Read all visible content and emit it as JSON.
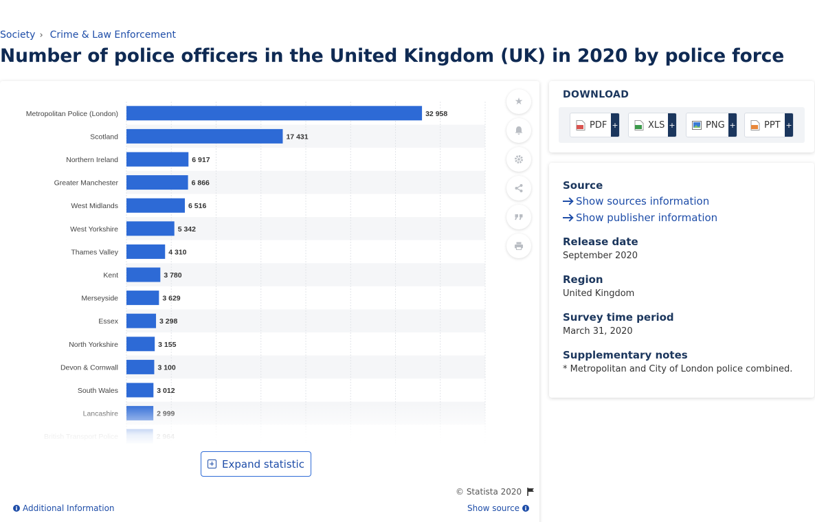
{
  "breadcrumb": {
    "item1": "Society",
    "item2": "Crime & Law Enforcement"
  },
  "page_title": "Number of police officers in the United Kingdom (UK) in 2020 by police force",
  "chart_data": {
    "type": "bar",
    "orientation": "horizontal",
    "categories": [
      "Metropolitan Police (London)",
      "Scotland",
      "Northern Ireland",
      "Greater Manchester",
      "West Midlands",
      "West Yorkshire",
      "Thames Valley",
      "Kent",
      "Merseyside",
      "Essex",
      "North Yorkshire",
      "Devon & Cornwall",
      "South Wales",
      "Lancashire",
      "British Transport Police"
    ],
    "values": [
      32958,
      17431,
      6917,
      6866,
      6516,
      5342,
      4310,
      3780,
      3629,
      3298,
      3155,
      3100,
      3012,
      2999,
      2964
    ],
    "value_labels": [
      "32 958",
      "17 431",
      "6 917",
      "6 866",
      "6 516",
      "5 342",
      "4 310",
      "3 780",
      "3 629",
      "3 298",
      "3 155",
      "3 100",
      "3 012",
      "2 999",
      "2 964"
    ],
    "xlim": [
      0,
      40000
    ],
    "bar_color": "#2d6ad6",
    "grid": true,
    "gridline_step": 5000
  },
  "tools": [
    "star-icon",
    "bell-icon",
    "gear-icon",
    "share-icon",
    "quote-icon",
    "print-icon"
  ],
  "expand_label": "Expand statistic",
  "copyright": "© Statista 2020",
  "additional_info": "Additional Information",
  "show_source": "Show source",
  "download": {
    "title": "DOWNLOAD",
    "buttons": [
      {
        "label": "PDF",
        "icon": "pdf-file-icon",
        "color": "#d9534f"
      },
      {
        "label": "XLS",
        "icon": "xls-file-icon",
        "color": "#3c9a4b"
      },
      {
        "label": "PNG",
        "icon": "png-file-icon",
        "color": "#3a7bd5"
      },
      {
        "label": "PPT",
        "icon": "ppt-file-icon",
        "color": "#e8873a"
      }
    ],
    "plus": "+"
  },
  "meta": {
    "source_label": "Source",
    "show_sources": "Show sources information",
    "show_publisher": "Show publisher information",
    "release_label": "Release date",
    "release_value": "September 2020",
    "region_label": "Region",
    "region_value": "United Kingdom",
    "survey_label": "Survey time period",
    "survey_value": "March 31, 2020",
    "notes_label": "Supplementary notes",
    "notes_value": "* Metropolitan and City of London police combined."
  }
}
